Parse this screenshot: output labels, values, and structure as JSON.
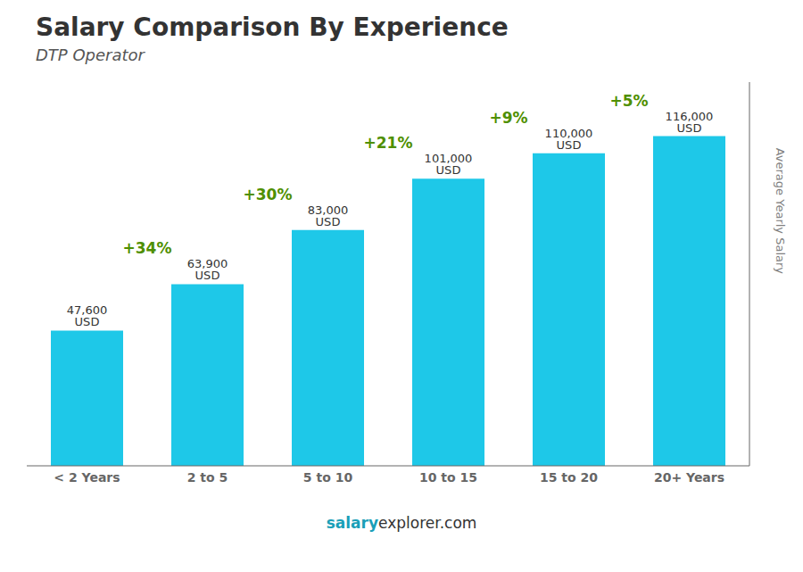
{
  "chart_data": {
    "type": "bar",
    "title": "Salary Comparison By Experience",
    "subtitle": "DTP Operator",
    "categories": [
      "< 2 Years",
      "2 to 5",
      "5 to 10",
      "10 to 15",
      "15 to 20",
      "20+ Years"
    ],
    "values": [
      47600,
      63900,
      83000,
      101000,
      110000,
      116000
    ],
    "value_labels": [
      "47,600 USD",
      "63,900 USD",
      "83,000 USD",
      "101,000 USD",
      "110,000 USD",
      "116,000 USD"
    ],
    "data_labels": true,
    "annotations": [
      "+34%",
      "+30%",
      "+21%",
      "+9%",
      "+5%"
    ],
    "ylabel": "Average Yearly Salary",
    "watermark": [
      "salary",
      "explorer.com"
    ],
    "color": "#1ec8e8",
    "ylim": [
      0,
      135000
    ],
    "tick_labels": "x",
    "grid": false
  }
}
